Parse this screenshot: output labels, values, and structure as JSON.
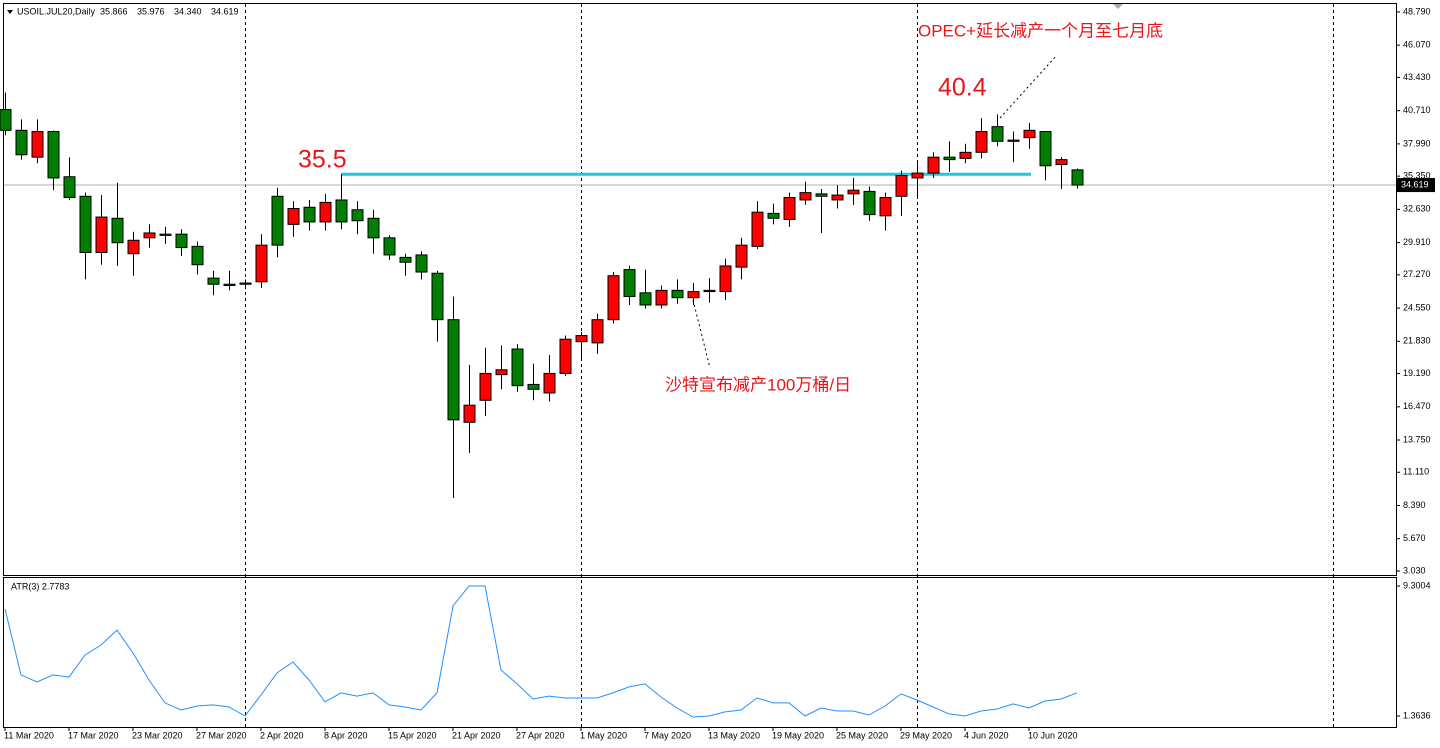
{
  "chart_data": [
    {
      "type": "candlestick",
      "title": "USOIL.JUL20,Daily",
      "ohlc_labels": [
        "35.866",
        "35.976",
        "34.340",
        "34.619"
      ],
      "categories": [
        "11 Mar 2020",
        null,
        null,
        null,
        "17 Mar 2020",
        null,
        null,
        null,
        "23 Mar 2020",
        null,
        null,
        null,
        "27 Mar 2020",
        null,
        null,
        null,
        "2 Apr 2020",
        null,
        null,
        null,
        "8 Apr 2020",
        null,
        null,
        null,
        "15 Apr 2020",
        null,
        null,
        null,
        "21 Apr 2020",
        null,
        null,
        null,
        "27 Apr 2020",
        null,
        null,
        null,
        "1 May 2020",
        null,
        null,
        null,
        "7 May 2020",
        null,
        null,
        null,
        "13 May 2020",
        null,
        null,
        null,
        "19 May 2020",
        null,
        null,
        null,
        "25 May 2020",
        null,
        null,
        null,
        "29 May 2020",
        null,
        null,
        null,
        "4 Jun 2020",
        null,
        null,
        null,
        "10 Jun 2020",
        null,
        null,
        null
      ],
      "open": [
        40.8,
        39.1,
        36.9,
        39.0,
        35.3,
        33.7,
        29.1,
        31.9,
        29.0,
        30.3,
        30.6,
        30.6,
        29.6,
        27.0,
        26.5,
        26.5,
        26.7,
        33.7,
        31.4,
        32.8,
        31.6,
        33.4,
        32.6,
        31.9,
        30.3,
        28.7,
        28.9,
        27.4,
        23.6,
        15.2,
        17.0,
        19.1,
        21.2,
        18.3,
        17.6,
        19.2,
        21.8,
        21.7,
        23.6,
        27.7,
        25.8,
        24.8,
        26.0,
        25.4,
        25.9,
        25.9,
        27.9,
        29.6,
        32.3,
        31.8,
        33.4,
        33.9,
        33.4,
        33.9,
        34.1,
        32.1,
        33.7,
        35.2,
        35.6,
        36.9,
        36.8,
        37.3,
        39.4,
        38.2,
        38.5,
        39.0,
        36.3,
        35.866
      ],
      "high": [
        42.2,
        40.0,
        40.0,
        39.1,
        36.9,
        34.0,
        33.8,
        34.8,
        30.8,
        31.4,
        31.2,
        31.0,
        30.0,
        27.6,
        27.6,
        26.9,
        30.6,
        34.4,
        33.3,
        33.4,
        33.9,
        35.5,
        33.3,
        32.6,
        30.5,
        29.0,
        29.2,
        27.6,
        25.5,
        19.9,
        21.3,
        21.5,
        21.6,
        20.0,
        20.7,
        22.3,
        22.6,
        24.1,
        27.5,
        28.0,
        27.7,
        26.4,
        26.9,
        26.6,
        27.0,
        28.6,
        30.3,
        33.3,
        33.1,
        34.0,
        34.9,
        34.3,
        34.6,
        35.2,
        34.5,
        34.0,
        35.8,
        36.4,
        37.3,
        38.2,
        38.0,
        40.1,
        40.4,
        39.0,
        39.7,
        39.0,
        36.9,
        35.976
      ],
      "low": [
        38.7,
        36.7,
        36.4,
        34.2,
        33.4,
        26.9,
        28.1,
        28.0,
        27.2,
        29.5,
        29.8,
        28.8,
        27.3,
        25.6,
        26.0,
        26.1,
        26.2,
        28.7,
        30.4,
        30.9,
        30.9,
        31.0,
        30.6,
        29.0,
        28.5,
        27.2,
        26.9,
        21.8,
        9.0,
        12.7,
        15.7,
        17.9,
        17.7,
        17.0,
        16.9,
        19.0,
        20.3,
        20.8,
        23.3,
        24.8,
        24.5,
        24.5,
        24.9,
        24.8,
        25.0,
        25.2,
        26.9,
        29.4,
        31.4,
        31.2,
        33.0,
        30.7,
        32.7,
        33.0,
        31.7,
        30.9,
        32.1,
        33.7,
        35.2,
        35.7,
        36.4,
        36.8,
        37.8,
        36.5,
        37.6,
        35.0,
        34.3,
        34.34
      ],
      "close": [
        39.1,
        37.1,
        39.0,
        35.2,
        33.6,
        29.1,
        32.0,
        29.9,
        30.1,
        30.7,
        30.5,
        29.5,
        28.1,
        26.5,
        26.4,
        26.6,
        29.7,
        29.7,
        32.7,
        31.6,
        33.2,
        31.6,
        31.7,
        30.3,
        28.9,
        28.3,
        27.5,
        23.6,
        15.4,
        16.6,
        19.2,
        19.5,
        18.2,
        17.9,
        19.2,
        22.0,
        22.3,
        23.6,
        27.2,
        25.5,
        24.8,
        26.0,
        25.4,
        25.9,
        26.0,
        28.0,
        29.7,
        32.4,
        31.9,
        33.6,
        34.0,
        33.7,
        33.8,
        34.2,
        32.2,
        33.6,
        35.4,
        35.6,
        36.9,
        36.7,
        37.3,
        39.0,
        38.2,
        38.3,
        39.1,
        36.2,
        36.7,
        34.619
      ],
      "up_color": "#ff0000",
      "down_color": "#008000",
      "ylim": [
        2.7,
        49.44
      ],
      "yticks": [
        {
          "value": 48.79,
          "label": "48.790"
        },
        {
          "value": 46.07,
          "label": "46.070"
        },
        {
          "value": 43.43,
          "label": "43.430"
        },
        {
          "value": 40.71,
          "label": "40.710"
        },
        {
          "value": 37.99,
          "label": "37.990"
        },
        {
          "value": 35.35,
          "label": "35.350"
        },
        {
          "value": 32.63,
          "label": "32.630"
        },
        {
          "value": 29.91,
          "label": "29.910"
        },
        {
          "value": 27.27,
          "label": "27.270"
        },
        {
          "value": 24.55,
          "label": "24.550"
        },
        {
          "value": 21.83,
          "label": "21.830"
        },
        {
          "value": 19.19,
          "label": "19.190"
        },
        {
          "value": 16.47,
          "label": "16.470"
        },
        {
          "value": 13.75,
          "label": "13.750"
        },
        {
          "value": 11.11,
          "label": "11.110"
        },
        {
          "value": 8.39,
          "label": "8.390"
        },
        {
          "value": 5.67,
          "label": "5.670"
        },
        {
          "value": 3.03,
          "label": "3.030"
        }
      ],
      "level": {
        "label": "35.5",
        "value": 35.5,
        "color": "#1ec8d8"
      },
      "annotations": [
        "40.4",
        "OPEC+延长减产一个月至七月底",
        "沙特宣布减产100万桶/日"
      ]
    },
    {
      "type": "line",
      "title": "ATR(3) 2.7783",
      "color": "#1e90ff",
      "values": [
        7.9,
        3.87,
        3.44,
        3.87,
        3.74,
        5.09,
        5.7,
        6.61,
        5.21,
        3.56,
        2.16,
        1.73,
        1.97,
        2.04,
        1.91,
        1.36,
        2.65,
        3.99,
        4.66,
        3.56,
        2.22,
        2.77,
        2.58,
        2.77,
        2.04,
        1.91,
        1.73,
        2.77,
        8.08,
        9.3,
        9.3,
        4.17,
        3.32,
        2.4,
        2.58,
        2.46,
        2.46,
        2.46,
        2.77,
        3.14,
        3.32,
        2.52,
        1.85,
        1.3,
        1.36,
        1.61,
        1.73,
        2.46,
        2.16,
        2.16,
        1.36,
        1.85,
        1.67,
        1.67,
        1.42,
        1.97,
        2.71,
        2.34,
        1.91,
        1.49,
        1.36,
        1.67,
        1.79,
        2.1,
        1.85,
        2.28,
        2.4,
        2.78
      ],
      "ylim": [
        0.69,
        9.79
      ],
      "yticks": [
        9.3004,
        1.3636
      ]
    }
  ]
}
